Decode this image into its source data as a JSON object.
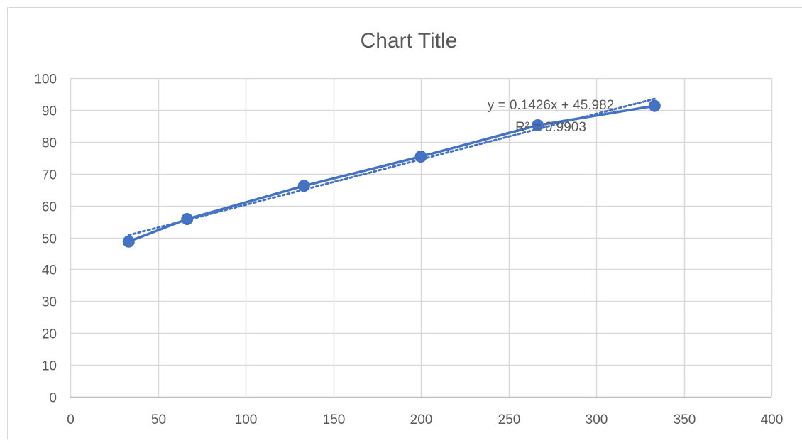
{
  "chart_data": {
    "type": "scatter",
    "title": "Chart Title",
    "xlabel": "",
    "ylabel": "",
    "xlim": [
      0,
      400
    ],
    "ylim": [
      0,
      100
    ],
    "x_ticks": [
      0,
      50,
      100,
      150,
      200,
      250,
      300,
      350,
      400
    ],
    "y_ticks": [
      0,
      10,
      20,
      30,
      40,
      50,
      60,
      70,
      80,
      90,
      100
    ],
    "grid": true,
    "legend": "none",
    "series": [
      {
        "x": [
          33.3,
          66.7,
          133.3,
          200,
          266.7,
          333.3
        ],
        "y": [
          48.7,
          55.8,
          66.2,
          75.4,
          85.2,
          91.3
        ],
        "color": "#4472C4",
        "line": "solid",
        "markers": true
      }
    ],
    "trendline": {
      "type": "linear",
      "slope": 0.1426,
      "intercept": 45.982,
      "x_range": [
        33.3,
        333.3
      ],
      "color": "#4472C4",
      "line": "dotted",
      "equation_label": "y = 0.1426x + 45.982",
      "r2_label": "R² = 0.9903"
    }
  }
}
